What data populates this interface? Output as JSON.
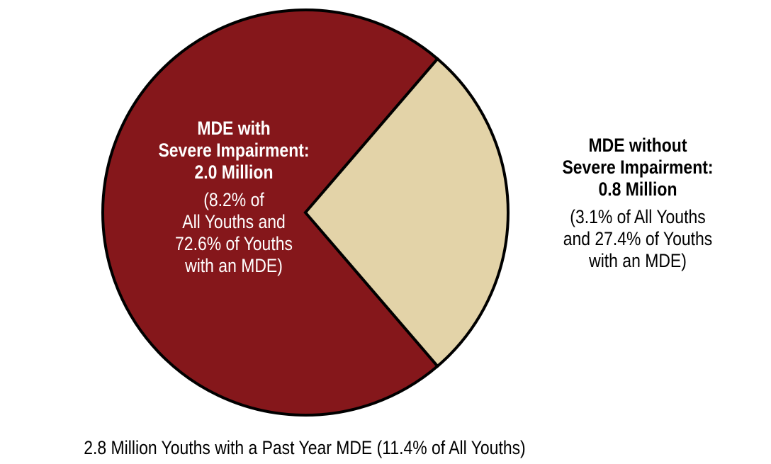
{
  "chart_data": {
    "type": "pie",
    "title": "",
    "slices": [
      {
        "name": "MDE with Severe Impairment",
        "value_millions": 2.0,
        "pct_all_youths": 8.2,
        "pct_youths_mde": 72.6,
        "color": "#85171b",
        "label_lines_bold": [
          "MDE with",
          "Severe Impairment:",
          "2.0 Million"
        ],
        "label_lines": [
          "(8.2% of",
          "All Youths and",
          "72.6% of Youths",
          "with an MDE)"
        ]
      },
      {
        "name": "MDE without Severe Impairment",
        "value_millions": 0.8,
        "pct_all_youths": 3.1,
        "pct_youths_mde": 27.4,
        "color": "#e3d3a8",
        "label_lines_bold": [
          "MDE without",
          "Severe Impairment:",
          "0.8 Million"
        ],
        "label_lines": [
          "(3.1% of All Youths",
          "and 27.4% of Youths",
          "with an MDE)"
        ]
      }
    ],
    "footnote": "2.8 Million Youths with a Past Year MDE (11.4% of All Youths)"
  }
}
